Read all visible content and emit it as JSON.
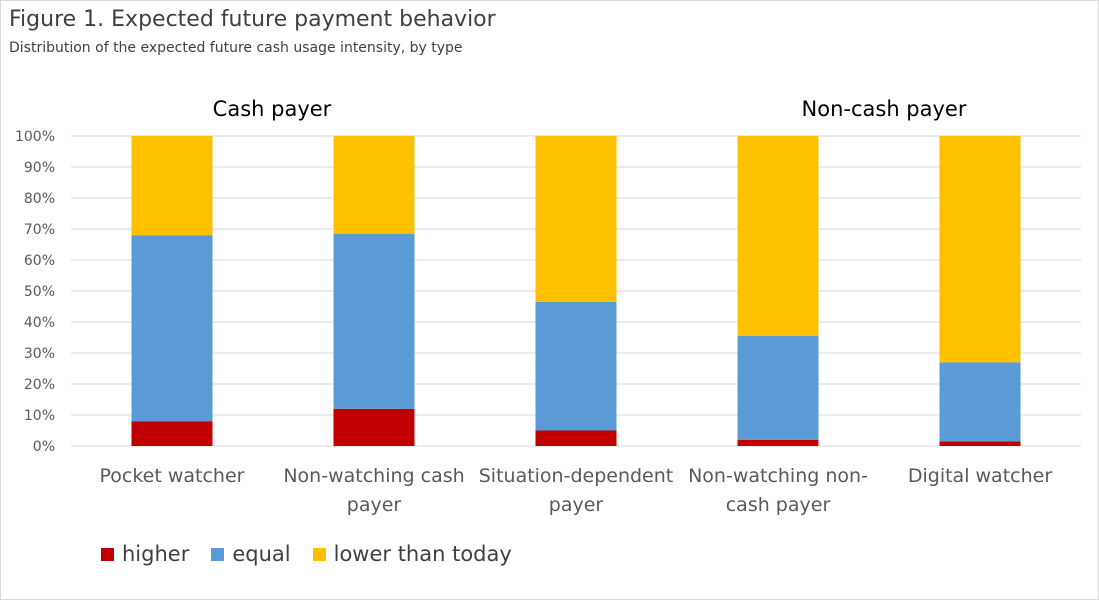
{
  "title": "Figure 1. Expected future payment behavior",
  "subtitle": "Distribution of the expected future cash usage intensity, by type",
  "group_labels": {
    "cash": "Cash payer",
    "non_cash": "Non-cash payer"
  },
  "colors": {
    "higher": "#c00000",
    "equal": "#5b9bd5",
    "lower": "#ffc000",
    "grid": "#d9d9d9"
  },
  "chart_data": {
    "type": "bar",
    "stacked": true,
    "title": "Figure 1. Expected future payment behavior",
    "subtitle": "Distribution of the expected future cash usage intensity, by type",
    "categories": [
      [
        "Pocket watcher"
      ],
      [
        "Non-watching cash",
        "payer"
      ],
      [
        "Situation-dependent",
        "payer"
      ],
      [
        "Non-watching non-",
        "cash payer"
      ],
      [
        "Digital watcher"
      ]
    ],
    "series": [
      {
        "name": "higher",
        "values": [
          8,
          12,
          5,
          2,
          1.5
        ]
      },
      {
        "name": "equal",
        "values": [
          60,
          56.5,
          41.5,
          33.5,
          25.5
        ]
      },
      {
        "name": "lower than today",
        "values": [
          32,
          31.5,
          53.5,
          64.5,
          73
        ]
      }
    ],
    "ylim": [
      0,
      100
    ],
    "yticks": [
      "0%",
      "10%",
      "20%",
      "30%",
      "40%",
      "50%",
      "60%",
      "70%",
      "80%",
      "90%",
      "100%"
    ],
    "grid": true,
    "legend_position": "bottom-left"
  }
}
